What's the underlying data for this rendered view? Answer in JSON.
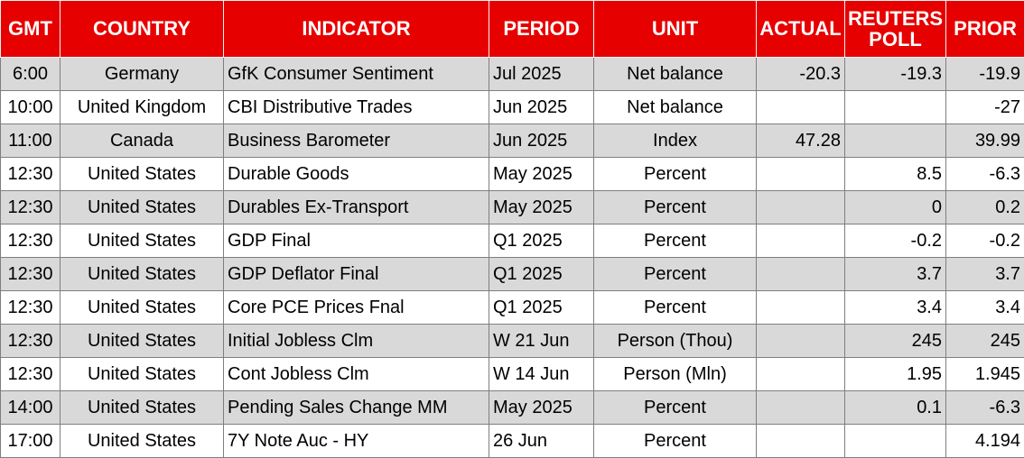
{
  "headers": {
    "gmt": "GMT",
    "country": "COUNTRY",
    "indicator": "INDICATOR",
    "period": "PERIOD",
    "unit": "UNIT",
    "actual": "ACTUAL",
    "poll_line1": "REUTERS",
    "poll_line2": "POLL",
    "prior": "PRIOR"
  },
  "colors": {
    "header_bg": "#e60000",
    "header_text": "#ffffff",
    "shaded_row": "#d9d9d9"
  },
  "rows": [
    {
      "gmt": "6:00",
      "country": "Germany",
      "indicator": "GfK Consumer Sentiment",
      "period": "Jul 2025",
      "unit": "Net balance",
      "actual": "-20.3",
      "poll": "-19.3",
      "prior": "-19.9"
    },
    {
      "gmt": "10:00",
      "country": "United Kingdom",
      "indicator": "CBI Distributive Trades",
      "period": "Jun 2025",
      "unit": "Net balance",
      "actual": "",
      "poll": "",
      "prior": "-27"
    },
    {
      "gmt": "11:00",
      "country": "Canada",
      "indicator": "Business Barometer",
      "period": "Jun 2025",
      "unit": "Index",
      "actual": "47.28",
      "poll": "",
      "prior": "39.99"
    },
    {
      "gmt": "12:30",
      "country": "United States",
      "indicator": "Durable Goods",
      "period": "May 2025",
      "unit": "Percent",
      "actual": "",
      "poll": "8.5",
      "prior": "-6.3"
    },
    {
      "gmt": "12:30",
      "country": "United States",
      "indicator": "Durables Ex-Transport",
      "period": "May 2025",
      "unit": "Percent",
      "actual": "",
      "poll": "0",
      "prior": "0.2"
    },
    {
      "gmt": "12:30",
      "country": "United States",
      "indicator": "GDP Final",
      "period": "Q1 2025",
      "unit": "Percent",
      "actual": "",
      "poll": "-0.2",
      "prior": "-0.2"
    },
    {
      "gmt": "12:30",
      "country": "United States",
      "indicator": "GDP Deflator Final",
      "period": "Q1 2025",
      "unit": "Percent",
      "actual": "",
      "poll": "3.7",
      "prior": "3.7"
    },
    {
      "gmt": "12:30",
      "country": "United States",
      "indicator": "Core PCE Prices Fnal",
      "period": "Q1 2025",
      "unit": "Percent",
      "actual": "",
      "poll": "3.4",
      "prior": "3.4"
    },
    {
      "gmt": "12:30",
      "country": "United States",
      "indicator": "Initial Jobless Clm",
      "period": "W 21 Jun",
      "unit": "Person (Thou)",
      "actual": "",
      "poll": "245",
      "prior": "245"
    },
    {
      "gmt": "12:30",
      "country": "United States",
      "indicator": "Cont Jobless Clm",
      "period": "W 14 Jun",
      "unit": "Person (Mln)",
      "actual": "",
      "poll": "1.95",
      "prior": "1.945"
    },
    {
      "gmt": "14:00",
      "country": "United States",
      "indicator": "Pending Sales Change MM",
      "period": "May 2025",
      "unit": "Percent",
      "actual": "",
      "poll": "0.1",
      "prior": "-6.3"
    },
    {
      "gmt": "17:00",
      "country": "United States",
      "indicator": "7Y Note Auc - HY",
      "period": "26 Jun",
      "unit": "Percent",
      "actual": "",
      "poll": "",
      "prior": "4.194"
    }
  ]
}
